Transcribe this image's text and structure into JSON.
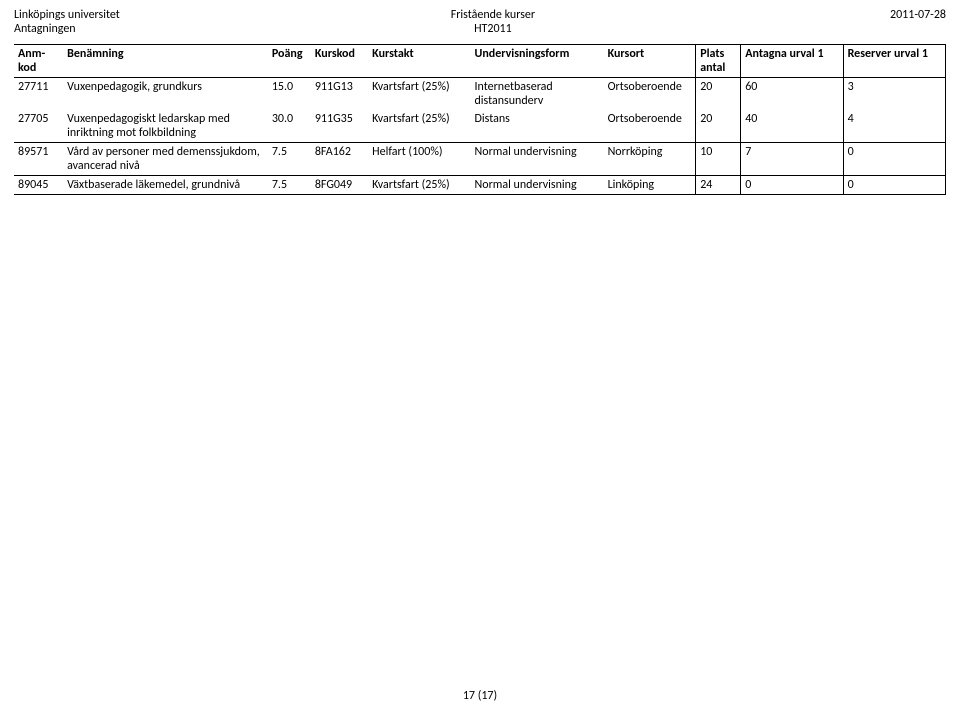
{
  "header": {
    "left1": "Linköpings universitet",
    "left2": "Antagningen",
    "center1": "Fristående kurser",
    "center2": "HT2011",
    "right1": "2011-07-28"
  },
  "columns": {
    "kod_l1": "Anm-",
    "kod_l2": "kod",
    "ben": "Benämning",
    "poang": "Poäng",
    "kurskod": "Kurskod",
    "takt": "Kurstakt",
    "uform": "Undervisningsform",
    "ort": "Kursort",
    "plats_l1": "Plats",
    "plats_l2": "antal",
    "ant": "Antagna urval 1",
    "res": "Reserver urval 1"
  },
  "rows": [
    {
      "kod": "27711",
      "ben": "Vuxenpedagogik, grundkurs",
      "poang": "15.0",
      "kurskod": "911G13",
      "takt": "Kvartsfart (25%)",
      "uform": "Internetbaserad distansunderv",
      "ort": "Ortsoberoende",
      "plats": "20",
      "ant": "60",
      "res": "3",
      "groupLast": false
    },
    {
      "kod": "27705",
      "ben": "Vuxenpedagogiskt ledarskap med inriktning mot folkbildning",
      "poang": "30.0",
      "kurskod": "911G35",
      "takt": "Kvartsfart (25%)",
      "uform": "Distans",
      "ort": "Ortsoberoende",
      "plats": "20",
      "ant": "40",
      "res": "4",
      "groupLast": true
    },
    {
      "kod": "89571",
      "ben": "Vård av personer med demenssjukdom, avancerad nivå",
      "poang": "7.5",
      "kurskod": "8FA162",
      "takt": "Helfart (100%)",
      "uform": "Normal undervisning",
      "ort": "Norrköping",
      "plats": "10",
      "ant": "7",
      "res": "0",
      "groupLast": true
    },
    {
      "kod": "89045",
      "ben": "Växtbaserade läkemedel, grundnivå",
      "poang": "7.5",
      "kurskod": "8FG049",
      "takt": "Kvartsfart (25%)",
      "uform": "Normal undervisning",
      "ort": "Linköping",
      "plats": "24",
      "ant": "0",
      "res": "0",
      "groupLast": true
    }
  ],
  "footer": {
    "page": "17 (17)"
  }
}
